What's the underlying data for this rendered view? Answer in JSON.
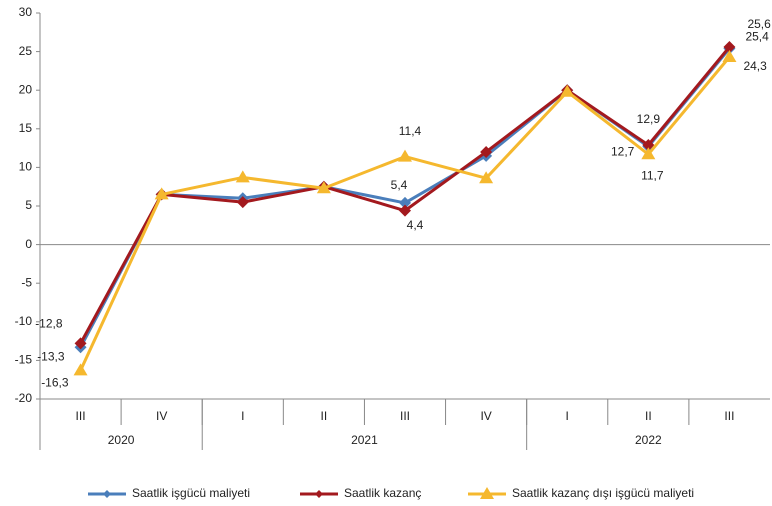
{
  "chart_data": {
    "type": "line",
    "categories": [
      "III",
      "IV",
      "I",
      "II",
      "III",
      "IV",
      "I",
      "II",
      "III"
    ],
    "year_groups": [
      {
        "label": "2020",
        "count": 2
      },
      {
        "label": "2021",
        "count": 4
      },
      {
        "label": "2022",
        "count": 3
      }
    ],
    "ylim": [
      -20,
      30
    ],
    "yticks": [
      -20,
      -15,
      -10,
      -5,
      0,
      5,
      10,
      15,
      20,
      25,
      30
    ],
    "series": [
      {
        "name": "Saatlik işgücü maliyeti",
        "color": "#4a7ebb",
        "marker": "diamond",
        "values": [
          -13.3,
          6.5,
          6.0,
          7.5,
          5.4,
          11.5,
          20.0,
          12.7,
          25.4
        ],
        "value_labels": [
          "-13,3",
          null,
          null,
          null,
          "5,4",
          null,
          null,
          "12,7",
          "25,4"
        ]
      },
      {
        "name": "Saatlik kazanç",
        "color": "#a3191e",
        "marker": "diamond",
        "values": [
          -12.8,
          6.5,
          5.5,
          7.5,
          4.4,
          12.0,
          20.0,
          12.9,
          25.6
        ],
        "value_labels": [
          "-12,8",
          null,
          null,
          null,
          "4,4",
          null,
          null,
          "12,9",
          "25,6"
        ]
      },
      {
        "name": "Saatlik kazanç dışı işgücü maliyeti",
        "color": "#f5b82e",
        "marker": "triangle",
        "values": [
          -16.3,
          6.5,
          8.7,
          7.3,
          11.4,
          8.6,
          19.8,
          11.7,
          24.3
        ],
        "value_labels": [
          "-16,3",
          null,
          null,
          null,
          "11,4",
          null,
          null,
          "11,7",
          "24,3"
        ]
      }
    ],
    "legend": "bottom"
  }
}
